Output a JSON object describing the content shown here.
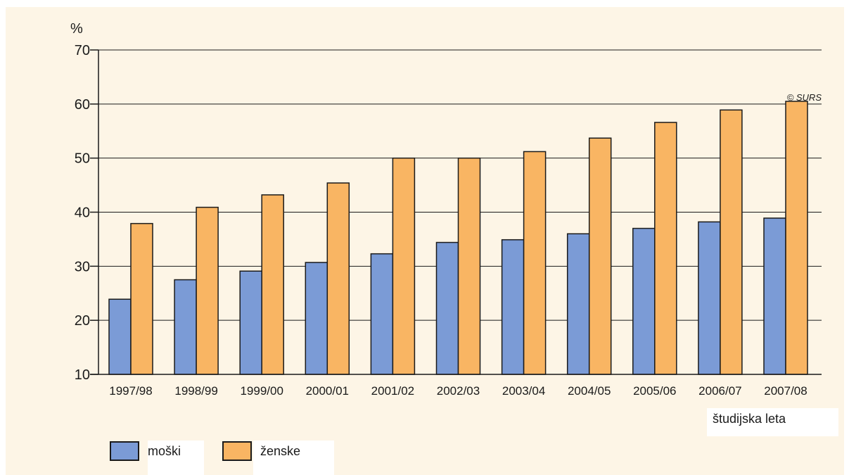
{
  "chart_data": {
    "type": "bar",
    "categories": [
      "1997/98",
      "1998/99",
      "1999/00",
      "2000/01",
      "2001/02",
      "2002/03",
      "2003/04",
      "2004/05",
      "2005/06",
      "2006/07",
      "2007/08"
    ],
    "series": [
      {
        "name": "moški",
        "values": [
          23.9,
          27.5,
          29.1,
          30.7,
          32.3,
          34.4,
          34.9,
          36.0,
          37.0,
          38.2,
          38.9
        ]
      },
      {
        "name": "ženske",
        "values": [
          37.9,
          40.9,
          43.2,
          45.4,
          50.0,
          50.0,
          51.2,
          53.7,
          56.6,
          58.9,
          60.5
        ]
      }
    ],
    "ylabel": "%",
    "xlabel": "študijska leta",
    "ylim": [
      10,
      70
    ],
    "yticks": [
      10,
      20,
      30,
      40,
      50,
      60,
      70
    ],
    "grid": true,
    "legend": "bottom-left",
    "annotation": "© SURS",
    "colors": {
      "moški": "#7b9bd6",
      "ženske": "#f9b563",
      "background": "#fdf5e6"
    }
  }
}
